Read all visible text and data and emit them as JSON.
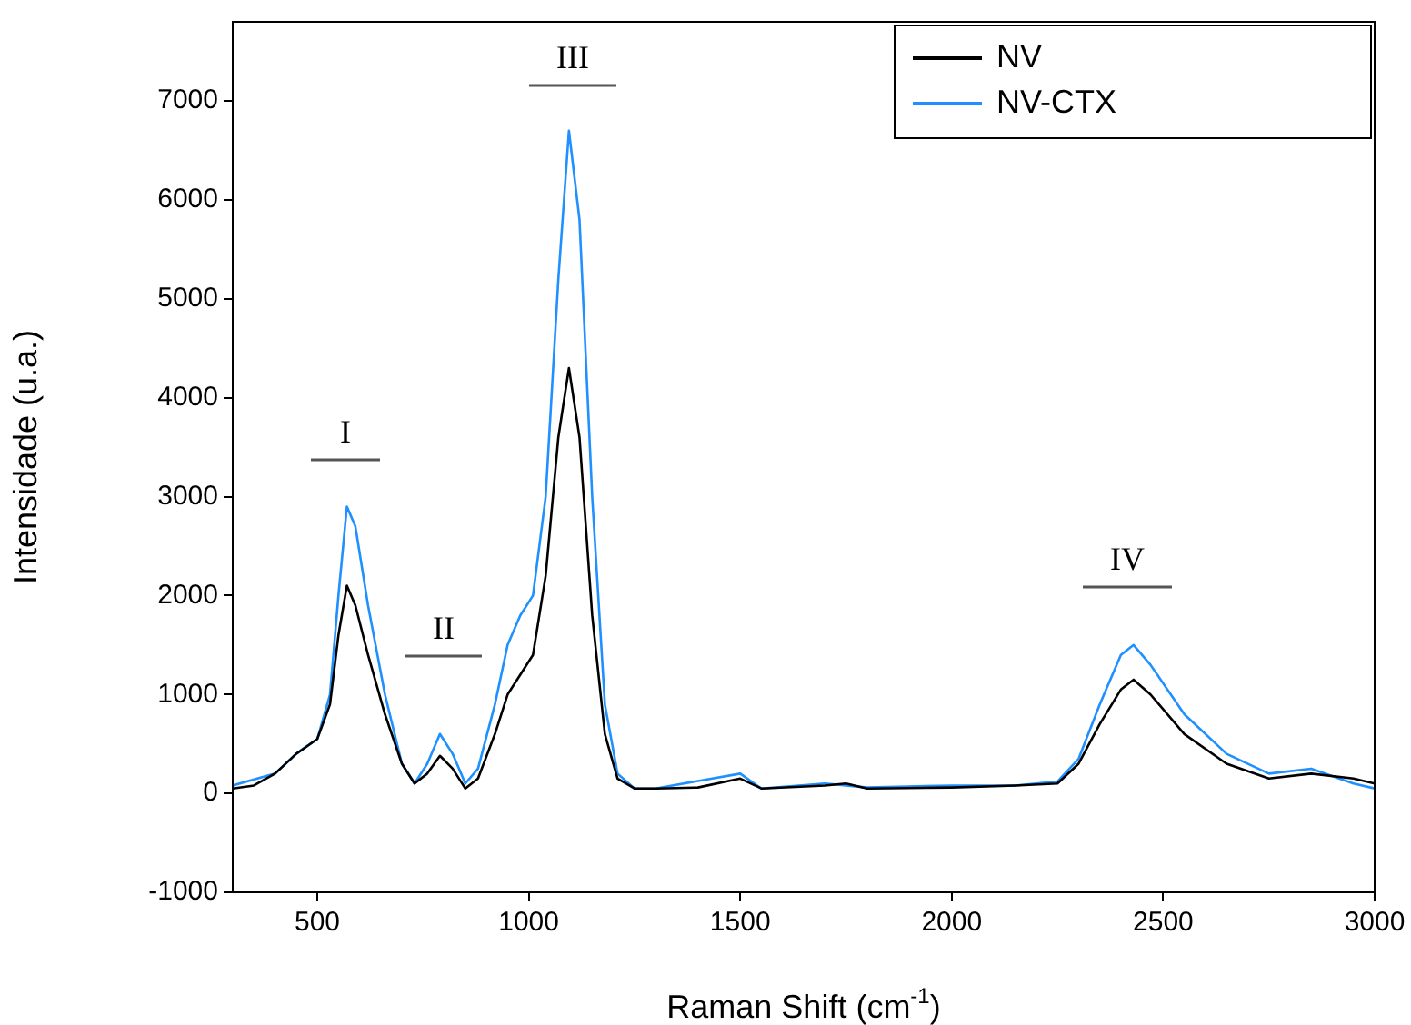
{
  "chart_data": {
    "type": "line",
    "xlabel": "Raman Shift (cm$^{-1}$)",
    "ylabel": "Intensidade (u.a.)",
    "xlim": [
      300,
      3000
    ],
    "xticks": [
      500,
      1000,
      1500,
      2000,
      2500,
      3000
    ],
    "ylim": [
      -1000,
      7800
    ],
    "yticks": [
      -1000,
      0,
      1000,
      2000,
      3000,
      4000,
      5000,
      6000,
      7000
    ],
    "grid": false,
    "legend": "top right",
    "marker": "none",
    "line_style": "solid",
    "series": [
      {
        "name": "NV",
        "color": "#000000",
        "x": [
          300,
          350,
          400,
          450,
          500,
          530,
          550,
          570,
          590,
          620,
          660,
          700,
          730,
          760,
          790,
          820,
          850,
          880,
          920,
          950,
          980,
          1010,
          1040,
          1070,
          1095,
          1120,
          1150,
          1180,
          1210,
          1250,
          1300,
          1400,
          1500,
          1550,
          1700,
          1750,
          1800,
          2000,
          2150,
          2250,
          2300,
          2350,
          2400,
          2430,
          2470,
          2550,
          2650,
          2750,
          2850,
          2950,
          3000
        ],
        "values": [
          50,
          80,
          200,
          400,
          550,
          900,
          1600,
          2100,
          1900,
          1400,
          800,
          300,
          100,
          200,
          380,
          250,
          50,
          150,
          600,
          1000,
          1200,
          1400,
          2200,
          3600,
          4300,
          3600,
          1800,
          600,
          150,
          50,
          50,
          60,
          150,
          50,
          80,
          100,
          50,
          60,
          80,
          100,
          300,
          700,
          1050,
          1150,
          1000,
          600,
          300,
          150,
          200,
          150,
          100
        ]
      },
      {
        "name": "NV-CTX",
        "color": "#1e90ff",
        "x": [
          300,
          400,
          450,
          500,
          530,
          550,
          570,
          590,
          620,
          660,
          700,
          730,
          760,
          790,
          820,
          850,
          880,
          920,
          950,
          980,
          1010,
          1040,
          1070,
          1095,
          1120,
          1150,
          1180,
          1210,
          1250,
          1300,
          1500,
          1550,
          1700,
          1800,
          2000,
          2150,
          2250,
          2300,
          2350,
          2400,
          2430,
          2470,
          2550,
          2650,
          2750,
          2850,
          2950,
          3000
        ],
        "values": [
          80,
          200,
          400,
          550,
          1000,
          2000,
          2900,
          2700,
          1900,
          1000,
          300,
          100,
          300,
          600,
          400,
          100,
          250,
          900,
          1500,
          1800,
          2000,
          3000,
          5200,
          6700,
          5800,
          3000,
          900,
          200,
          50,
          50,
          200,
          50,
          100,
          60,
          80,
          80,
          120,
          350,
          900,
          1400,
          1500,
          1300,
          800,
          400,
          200,
          250,
          100,
          50
        ]
      }
    ],
    "annotations": [
      "I",
      "II",
      "III",
      "IV"
    ]
  }
}
